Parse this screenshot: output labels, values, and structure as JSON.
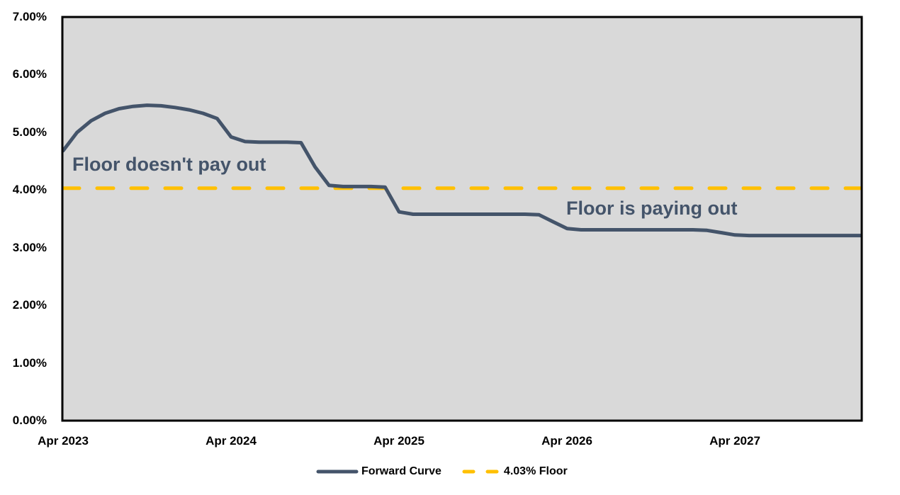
{
  "chart_data": {
    "type": "line",
    "title": "",
    "xlabel": "",
    "ylabel": "",
    "grid": "off",
    "plot_background": true,
    "ylim": [
      0,
      7
    ],
    "y_ticks": [
      {
        "label": "0.00%",
        "value": 0
      },
      {
        "label": "1.00%",
        "value": 1
      },
      {
        "label": "2.00%",
        "value": 2
      },
      {
        "label": "3.00%",
        "value": 3
      },
      {
        "label": "4.00%",
        "value": 4
      },
      {
        "label": "5.00%",
        "value": 5
      },
      {
        "label": "6.00%",
        "value": 6
      },
      {
        "label": "7.00%",
        "value": 7
      }
    ],
    "x_unit": "month_index_from_Apr_2023",
    "x_ticks": [
      {
        "label": "Apr 2023",
        "month": 0
      },
      {
        "label": "Apr 2024",
        "month": 12
      },
      {
        "label": "Apr 2025",
        "month": 24
      },
      {
        "label": "Apr 2026",
        "month": 36
      },
      {
        "label": "Apr 2027",
        "month": 48
      }
    ],
    "series": [
      {
        "name": "Forward Curve",
        "line_style": "solid",
        "color": "#44546A",
        "values_pct": [
          4.68,
          5.0,
          5.2,
          5.33,
          5.41,
          5.45,
          5.47,
          5.46,
          5.43,
          5.39,
          5.33,
          5.24,
          4.92,
          4.84,
          4.83,
          4.83,
          4.83,
          4.82,
          4.4,
          4.08,
          4.06,
          4.06,
          4.06,
          4.05,
          3.62,
          3.58,
          3.58,
          3.58,
          3.58,
          3.58,
          3.58,
          3.58,
          3.58,
          3.58,
          3.57,
          3.45,
          3.33,
          3.31,
          3.31,
          3.31,
          3.31,
          3.31,
          3.31,
          3.31,
          3.31,
          3.31,
          3.3,
          3.26,
          3.22,
          3.21,
          3.21,
          3.21,
          3.21,
          3.21,
          3.21,
          3.21,
          3.21,
          3.21
        ]
      },
      {
        "name": "4.03% Floor",
        "line_style": "dashed",
        "color": "#FFC000",
        "constant_value_pct": 4.03
      }
    ],
    "annotations": [
      {
        "id": "no-payout",
        "text": "Floor doesn't pay out",
        "color": "#44546A"
      },
      {
        "id": "payout",
        "text": "Floor is paying out",
        "color": "#44546A"
      }
    ],
    "legend": {
      "position": "bottom-center",
      "items": [
        {
          "label": "Forward Curve"
        },
        {
          "label": "4.03% Floor"
        }
      ]
    },
    "colors": {
      "plot_background": "#D9D9D9",
      "plot_border": "#000000",
      "axis_text": "#000000"
    }
  }
}
